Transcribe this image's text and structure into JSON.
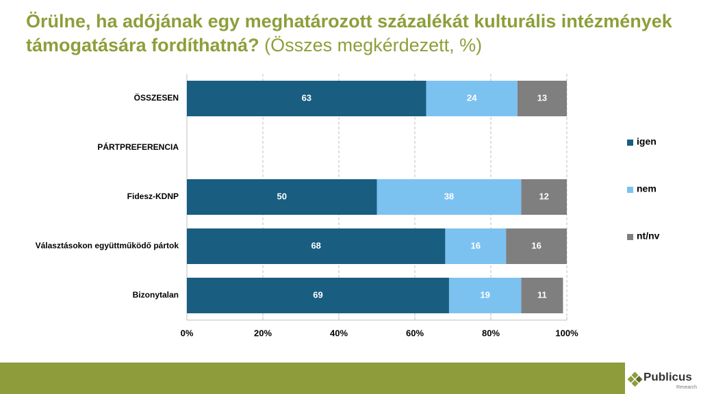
{
  "chart_data": {
    "type": "bar",
    "orientation": "horizontal",
    "stacked": true,
    "title": "Örülne, ha adójának egy meghatározott százalékát kulturális intézmények támogatására fordíthatná?",
    "subtitle": "(Összes megkérdezett, %)",
    "categories": [
      "ÖSSZESEN",
      "PÁRTPREFERENCIA",
      "Fidesz-KDNP",
      "Választásokon együttműködő pártok",
      "Bizonytalan"
    ],
    "series": [
      {
        "name": "igen",
        "color": "#195d80",
        "values": [
          63,
          null,
          50,
          68,
          69
        ]
      },
      {
        "name": "nem",
        "color": "#7cc2f1",
        "values": [
          24,
          null,
          38,
          16,
          19
        ]
      },
      {
        "name": "nt/nv",
        "color": "#7f7f7f",
        "values": [
          13,
          null,
          12,
          16,
          11
        ]
      }
    ],
    "xlim": [
      0,
      100
    ],
    "xticks": [
      {
        "value": 0,
        "label": "0%"
      },
      {
        "value": 20,
        "label": "20%"
      },
      {
        "value": 40,
        "label": "40%"
      },
      {
        "value": 60,
        "label": "60%"
      },
      {
        "value": 80,
        "label": "80%"
      },
      {
        "value": 100,
        "label": "100%"
      }
    ],
    "grid": true,
    "legend": "right"
  },
  "logo": {
    "name": "Publicus",
    "sub": "Research"
  }
}
